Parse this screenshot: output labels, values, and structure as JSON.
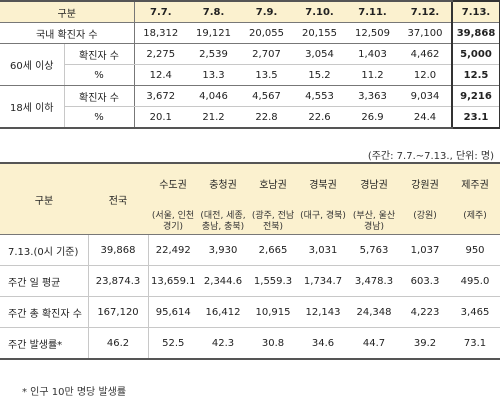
{
  "table1": {
    "header_label": "구분",
    "dates": [
      "7.7.",
      "7.8.",
      "7.9.",
      "7.10.",
      "7.11.",
      "7.12."
    ],
    "highlight_date": "7.13.",
    "national_row": {
      "label": "국내 확진자 수",
      "values": [
        "18,312",
        "19,121",
        "20,055",
        "20,155",
        "12,509",
        "37,100"
      ],
      "highlight": "39,868"
    },
    "groups": [
      {
        "label": "60세 이상",
        "rows": [
          {
            "label": "확진자 수",
            "values": [
              "2,275",
              "2,539",
              "2,707",
              "3,054",
              "1,403",
              "4,462"
            ],
            "highlight": "5,000"
          },
          {
            "label": "%",
            "values": [
              "12.4",
              "13.3",
              "13.5",
              "15.2",
              "11.2",
              "12.0"
            ],
            "highlight": "12.5"
          }
        ]
      },
      {
        "label": "18세 이하",
        "rows": [
          {
            "label": "확진자 수",
            "values": [
              "3,672",
              "4,046",
              "4,567",
              "4,553",
              "3,363",
              "9,034"
            ],
            "highlight": "9,216"
          },
          {
            "label": "%",
            "values": [
              "20.1",
              "21.2",
              "22.8",
              "22.6",
              "26.9",
              "24.4"
            ],
            "highlight": "23.1"
          }
        ]
      }
    ]
  },
  "unit_note": "(주간: 7.7.~7.13., 단위: 명)",
  "table2": {
    "header_label": "구분",
    "total_label": "전국",
    "regions": [
      {
        "name": "수도권",
        "sub": "(서울, 인천 경기)"
      },
      {
        "name": "충청권",
        "sub": "(대전, 세종, 충남, 충북)"
      },
      {
        "name": "호남권",
        "sub": "(광주, 전남 전북)"
      },
      {
        "name": "경북권",
        "sub": "(대구, 경북)"
      },
      {
        "name": "경남권",
        "sub": "(부산, 울산 경남)"
      },
      {
        "name": "강원권",
        "sub": "(강원)"
      },
      {
        "name": "제주권",
        "sub": "(제주)"
      }
    ],
    "rows": [
      {
        "label": "7.13.(0시 기준)",
        "total": "39,868",
        "values": [
          "22,492",
          "3,930",
          "2,665",
          "3,031",
          "5,763",
          "1,037",
          "950"
        ]
      },
      {
        "label": "주간 일 평균",
        "total": "23,874.3",
        "values": [
          "13,659.1",
          "2,344.6",
          "1,559.3",
          "1,734.7",
          "3,478.3",
          "603.3",
          "495.0"
        ]
      },
      {
        "label": "주간 총 확진자 수",
        "total": "167,120",
        "values": [
          "95,614",
          "16,412",
          "10,915",
          "12,143",
          "24,348",
          "4,223",
          "3,465"
        ]
      },
      {
        "label": "주간 발생률*",
        "total": "46.2",
        "values": [
          "52.5",
          "42.3",
          "30.8",
          "34.6",
          "44.7",
          "39.2",
          "73.1"
        ]
      }
    ]
  },
  "footnote": "* 인구 10만 명당 발생률"
}
